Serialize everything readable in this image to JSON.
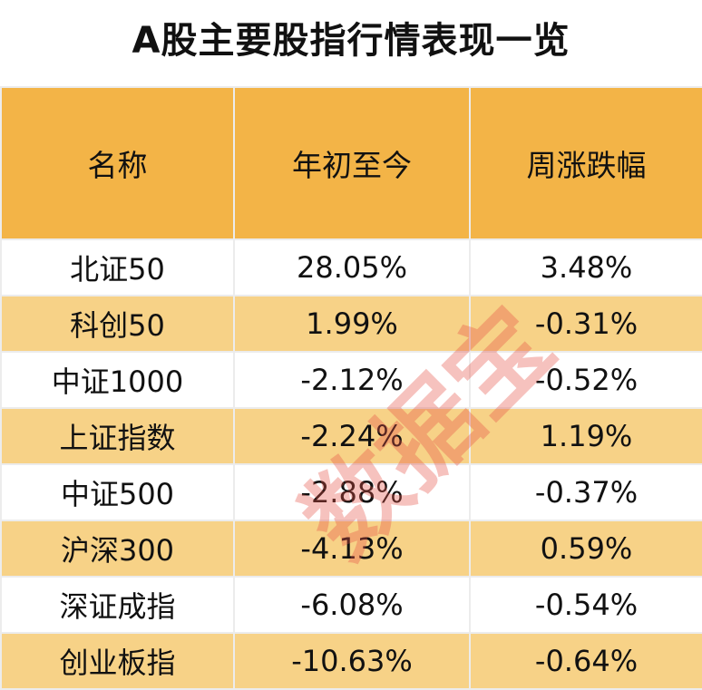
{
  "title": "A股主要股指行情表现一览",
  "watermark": "数据宝",
  "colors": {
    "header_bg": "#F3B447",
    "alt_row_bg": "#F7D287",
    "watermark": "#E65046"
  },
  "chart_data": {
    "type": "table",
    "title": "A股主要股指行情表现一览",
    "columns": [
      "名称",
      "年初至今",
      "周涨跌幅"
    ],
    "rows": [
      [
        "北证50",
        "28.05%",
        "3.48%"
      ],
      [
        "科创50",
        "1.99%",
        "-0.31%"
      ],
      [
        "中证1000",
        "-2.12%",
        "-0.52%"
      ],
      [
        "上证指数",
        "-2.24%",
        "1.19%"
      ],
      [
        "中证500",
        "-2.88%",
        "-0.37%"
      ],
      [
        "沪深300",
        "-4.13%",
        "0.59%"
      ],
      [
        "深证成指",
        "-6.08%",
        "-0.54%"
      ],
      [
        "创业板指",
        "-10.63%",
        "-0.64%"
      ]
    ]
  }
}
